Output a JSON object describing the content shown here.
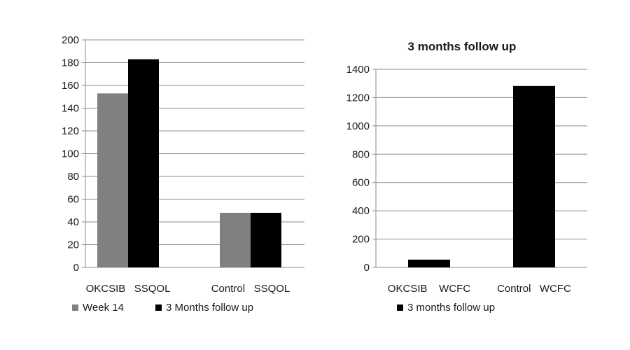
{
  "chart_data": [
    {
      "type": "bar",
      "title": "",
      "xlabel": "",
      "ylabel": "",
      "categories": [
        "OKCSIB SSQOL",
        "Control SSQOL"
      ],
      "ylim": [
        0,
        200
      ],
      "yticks": [
        0,
        20,
        40,
        60,
        80,
        100,
        120,
        140,
        160,
        180,
        200
      ],
      "grid": true,
      "legend": "bottom",
      "series": [
        {
          "name": "Week 14",
          "color": "#808080",
          "values": [
            153,
            48
          ]
        },
        {
          "name": "3 Months follow up",
          "color": "#000000",
          "values": [
            183,
            48
          ]
        }
      ]
    },
    {
      "type": "bar",
      "title": "3 months follow up",
      "xlabel": "",
      "ylabel": "",
      "categories": [
        "OKCSIB  WCFC",
        "Control WCFC"
      ],
      "ylim": [
        0,
        1400
      ],
      "yticks": [
        0,
        200,
        400,
        600,
        800,
        1000,
        1200,
        1400
      ],
      "grid": true,
      "legend": "bottom",
      "series": [
        {
          "name": "3 months follow up",
          "color": "#000000",
          "values": [
            55,
            1282
          ]
        }
      ]
    }
  ]
}
